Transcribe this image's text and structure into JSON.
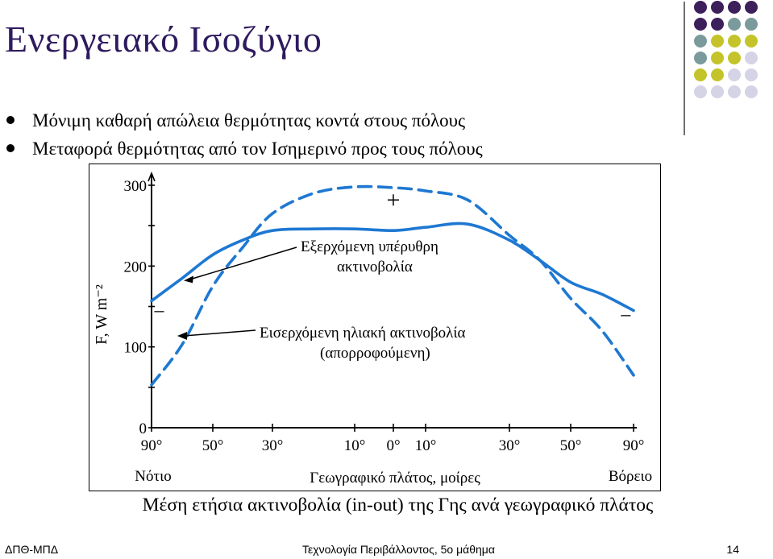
{
  "slide": {
    "title": "Ενεργειακό Ισοζύγιο",
    "bullets": [
      "Μόνιμη καθαρή απώλεια θερμότητας κοντά στους πόλους",
      "Μεταφορά θερμότητας από τον Ισημερινό προς τους πόλους"
    ],
    "caption": "Μέση ετήσια ακτινοβολία (in-out) της Γης ανά γεωγραφικό πλάτος",
    "footer_left": "ΔΠΘ-ΜΠΔ",
    "footer_center": "Τεχνολογία Περιβάλλοντος, 5ο μάθημα",
    "page_number": "14"
  },
  "colors": {
    "title": "#2e1a5e",
    "curve": "#1e78d2",
    "dot_purple": "#3d1f5c",
    "dot_teal": "#7a9a9c",
    "dot_olive": "#c4c42a",
    "dot_lavender": "#d5d3e6"
  },
  "chart_data": {
    "type": "line",
    "ylabel": "F, W m⁻²",
    "xlabel": "Γεωγραφικό πλάτος, μοίρες",
    "x_axis_left_label": "Νότιο",
    "x_axis_right_label": "Βόρειο",
    "ylim": [
      0,
      300
    ],
    "y_ticks": [
      0,
      100,
      200,
      300
    ],
    "x_ticks": [
      "90°",
      "50°",
      "30°",
      "10°",
      "0°",
      "10°",
      "30°",
      "50°",
      "90°"
    ],
    "x": [
      -90,
      -70,
      -50,
      -40,
      -30,
      -20,
      -10,
      0,
      10,
      20,
      30,
      40,
      50,
      70,
      90
    ],
    "series": [
      {
        "name": "Εξερχόμενη υπέρυθρη ακτινοβολία",
        "style": "solid",
        "values": [
          157,
          185,
          214,
          232,
          244,
          246,
          246,
          244,
          248,
          252,
          232,
          207,
          180,
          165,
          145
        ]
      },
      {
        "name": "Εισερχόμενη ηλιακή ακτινοβολία (απορροφούμενη)",
        "style": "dashed",
        "values": [
          53,
          103,
          175,
          223,
          265,
          290,
          298,
          297,
          293,
          282,
          238,
          207,
          160,
          120,
          65
        ]
      }
    ],
    "annotations": [
      {
        "text_lines": [
          "Εξερχόμενη υπέρυθρη",
          "ακτινοβολία"
        ],
        "target_series": 0,
        "target_x": -70
      },
      {
        "text_lines": [
          "Εισερχόμενη ηλιακή ακτινοβολία",
          "(απορροφούμενη)"
        ],
        "target_series": 1,
        "target_x": -90
      },
      {
        "text": "+",
        "x": 0,
        "y": 272
      },
      {
        "text": "−",
        "x": -85,
        "y": 135
      },
      {
        "text": "−",
        "x": 85,
        "y": 130
      }
    ]
  }
}
